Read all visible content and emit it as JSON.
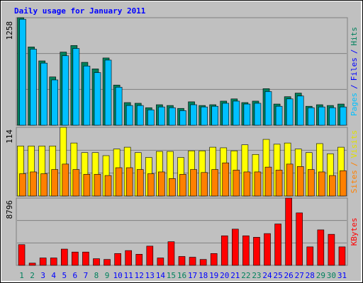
{
  "title": "Daily usage for January 2011",
  "chart_data": [
    {
      "type": "bar",
      "ylim": [
        0,
        1258
      ],
      "yticks": [
        1258
      ],
      "axis_label": [
        {
          "text": "Pages",
          "color": "#00c0ff"
        },
        {
          "text": "/",
          "color": "#0000ff"
        },
        {
          "text": "Files",
          "color": "#0000ff"
        },
        {
          "text": "/",
          "color": "#0000ff"
        },
        {
          "text": "Hits",
          "color": "#00805c"
        }
      ],
      "series": [
        {
          "name": "Hits",
          "color": "#00805c",
          "values": [
            1258,
            916,
            753,
            565,
            856,
            933,
            736,
            659,
            787,
            470,
            265,
            257,
            205,
            240,
            231,
            197,
            274,
            231,
            240,
            282,
            308,
            265,
            282,
            428,
            248,
            334,
            376,
            222,
            240,
            231,
            248
          ]
        },
        {
          "name": "Files",
          "color": "#00c0ff",
          "values": [
            1240,
            890,
            727,
            530,
            813,
            898,
            693,
            616,
            762,
            445,
            231,
            231,
            180,
            214,
            205,
            171,
            240,
            214,
            222,
            257,
            282,
            248,
            257,
            394,
            222,
            308,
            342,
            205,
            214,
            205,
            214
          ]
        }
      ]
    },
    {
      "type": "bar",
      "ylim": [
        0,
        114
      ],
      "yticks": [
        114
      ],
      "axis_label": [
        {
          "text": "Sites",
          "color": "#ff8000"
        },
        {
          "text": "/",
          "color": "#ff8000"
        },
        {
          "text": "Visits",
          "color": "#e0e000"
        }
      ],
      "series": [
        {
          "name": "Visits",
          "color": "#ffff00",
          "values": [
            83,
            83,
            83,
            83,
            114,
            88,
            72,
            72,
            67,
            78,
            81,
            72,
            64,
            74,
            74,
            64,
            75,
            75,
            81,
            80,
            75,
            85,
            69,
            94,
            86,
            88,
            78,
            72,
            87,
            70,
            81
          ]
        },
        {
          "name": "Sites",
          "color": "#ff8000",
          "values": [
            37,
            40,
            37,
            44,
            53,
            44,
            36,
            36,
            34,
            47,
            47,
            44,
            37,
            40,
            29,
            36,
            44,
            39,
            44,
            55,
            43,
            40,
            40,
            48,
            43,
            53,
            49,
            44,
            40,
            34,
            42
          ]
        }
      ]
    },
    {
      "type": "bar",
      "ylim": [
        0,
        8796
      ],
      "yticks": [
        8796
      ],
      "axis_label": [
        {
          "text": "KBytes",
          "color": "#ff0000"
        }
      ],
      "categories": [
        "1",
        "2",
        "3",
        "4",
        "5",
        "6",
        "7",
        "8",
        "9",
        "10",
        "11",
        "12",
        "13",
        "14",
        "15",
        "16",
        "17",
        "18",
        "19",
        "20",
        "21",
        "22",
        "23",
        "24",
        "25",
        "26",
        "27",
        "28",
        "29",
        "30",
        "31"
      ],
      "category_colors": [
        "#00805c",
        "#00805c",
        "#0000ff",
        "#0000ff",
        "#0000ff",
        "#0000ff",
        "#0000ff",
        "#00805c",
        "#00805c",
        "#0000ff",
        "#0000ff",
        "#0000ff",
        "#0000ff",
        "#0000ff",
        "#00805c",
        "#00805c",
        "#0000ff",
        "#0000ff",
        "#0000ff",
        "#0000ff",
        "#0000ff",
        "#00805c",
        "#00805c",
        "#0000ff",
        "#0000ff",
        "#0000ff",
        "#0000ff",
        "#0000ff",
        "#00805c",
        "#00805c",
        "#0000ff"
      ],
      "series": [
        {
          "name": "KBytes",
          "color": "#ff0000",
          "values": [
            2707,
            290,
            967,
            967,
            2127,
            1740,
            1740,
            870,
            773,
            1547,
            1933,
            1450,
            2513,
            967,
            3093,
            1160,
            1063,
            773,
            1547,
            3866,
            4736,
            3866,
            3673,
            4156,
            5413,
            8796,
            6863,
            2417,
            4640,
            4060,
            2417
          ]
        }
      ]
    }
  ]
}
